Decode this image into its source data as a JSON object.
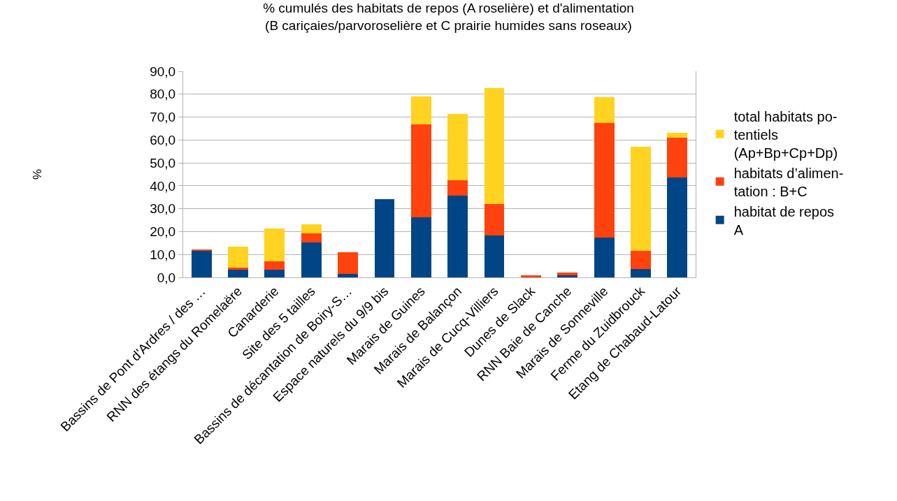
{
  "chart_data": {
    "type": "bar",
    "stacked": true,
    "title": "% cumulés des habitats de repos (A roselière) et d'alimentation\n(B cariçaies/parvoroselière et C prairie humides sans roseaux)",
    "ylabel": "%",
    "categories": [
      "Bassins de Pont d'Ardres / des …",
      "RNN des étangs du Romelaëre",
      "Canarderie",
      "Site des 5 tailles",
      "Bassins de décantation de Boiry-S…",
      "Espace naturels du 9/9 bis",
      "Marais de Guines",
      "Marais de Balançon",
      "Marais de Cucq-Villiers",
      "Dunes de Slack",
      "RNN Baie de Canche",
      "Marais de Sonneville",
      "Ferme du Zuidbrouck",
      "Etang de Chabaud-Latour"
    ],
    "series": [
      {
        "name": "habitat de repos\nA",
        "color": "#004586",
        "values": [
          11.7,
          3.4,
          3.4,
          15.3,
          1.5,
          34.1,
          26.1,
          35.6,
          18.4,
          0,
          0.9,
          17.5,
          3.7,
          43.6
        ]
      },
      {
        "name": "habitats d’alimen-\ntation : B+C",
        "color": "#ff420e",
        "values": [
          0.6,
          0.9,
          3.7,
          4.0,
          9.5,
          0,
          40.8,
          6.8,
          13.5,
          0.9,
          1.2,
          50.0,
          8.0,
          17.5
        ]
      },
      {
        "name": "total habitats po-\ntentiels\n(Ap+Bp+Cp+Dp)",
        "color": "#ffd320",
        "values": [
          0,
          9.2,
          14.4,
          4.0,
          0,
          0,
          12.0,
          29.1,
          50.7,
          0,
          0,
          11.1,
          45.4,
          2.1
        ]
      }
    ],
    "ylim": [
      0,
      90
    ],
    "yticks": [
      {
        "value": 0,
        "label": "0,0"
      },
      {
        "value": 10,
        "label": "10,0"
      },
      {
        "value": 20,
        "label": "20,0"
      },
      {
        "value": 30,
        "label": "30,0"
      },
      {
        "value": 40,
        "label": "40,0"
      },
      {
        "value": 50,
        "label": "50,0"
      },
      {
        "value": 60,
        "label": "60,0"
      },
      {
        "value": 70,
        "label": "70,0"
      },
      {
        "value": 80,
        "label": "80,0"
      },
      {
        "value": 90,
        "label": "90,0"
      }
    ],
    "grid": "y",
    "legend": "right"
  }
}
